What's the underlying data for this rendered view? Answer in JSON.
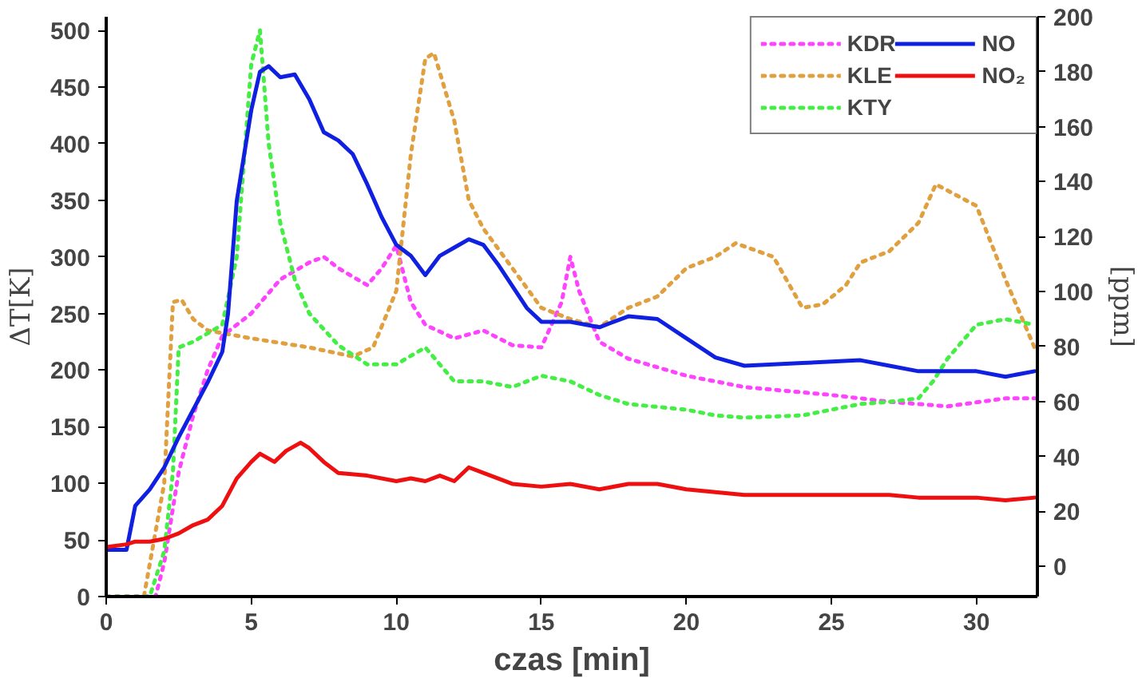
{
  "chart_data": {
    "type": "line",
    "xlabel": "czas [min]",
    "ylabel": "ΔT[K]",
    "y2label": "[ppm]",
    "xlim": [
      0,
      32.1
    ],
    "xticks": [
      0,
      5,
      10,
      15,
      20,
      25,
      30
    ],
    "ylim": [
      0,
      512
    ],
    "yticks": [
      0,
      50,
      100,
      150,
      200,
      250,
      300,
      350,
      400,
      450,
      500
    ],
    "y2lim": [
      -11,
      200
    ],
    "y2ticks": [
      0,
      20,
      40,
      60,
      80,
      100,
      120,
      140,
      160,
      180,
      200
    ],
    "legend": "top right",
    "grid": false,
    "series": [
      {
        "name": "KDR",
        "color": "#ff44ff",
        "line_style": "dotted",
        "x": [
          0,
          1.7,
          2,
          2.5,
          3,
          3.5,
          4,
          5,
          6,
          7,
          7.5,
          8,
          9,
          9.5,
          10,
          10.5,
          11,
          12,
          13,
          14,
          15,
          15.7,
          16,
          16.3,
          17,
          18,
          20,
          22,
          25,
          27,
          29,
          31,
          32
        ],
        "values": [
          0,
          0,
          30,
          110,
          160,
          200,
          230,
          250,
          280,
          295,
          300,
          290,
          275,
          290,
          310,
          260,
          240,
          228,
          235,
          222,
          220,
          260,
          300,
          270,
          225,
          210,
          195,
          185,
          178,
          172,
          168,
          175,
          175
        ]
      },
      {
        "name": "KLE",
        "color": "#e0a040",
        "line_style": "dotted",
        "x": [
          0,
          1.3,
          2,
          2.3,
          2.6,
          3,
          3.5,
          5,
          7,
          8.5,
          9.2,
          10,
          10.5,
          11,
          11.3,
          12,
          12.5,
          13,
          14,
          15,
          16,
          17,
          18,
          19,
          20,
          21,
          21.7,
          23,
          24,
          24.7,
          25.5,
          26,
          27,
          28,
          28.6,
          30,
          31,
          32
        ],
        "values": [
          0,
          0,
          100,
          260,
          262,
          245,
          235,
          228,
          220,
          212,
          220,
          270,
          390,
          475,
          480,
          420,
          350,
          325,
          290,
          255,
          245,
          238,
          255,
          265,
          290,
          300,
          312,
          300,
          255,
          258,
          275,
          295,
          305,
          330,
          364,
          345,
          280,
          220
        ]
      },
      {
        "name": "KTY",
        "color": "#44ee44",
        "line_style": "dotted",
        "x": [
          0,
          1.5,
          2,
          2.3,
          2.5,
          3,
          4,
          4.5,
          5,
          5.3,
          5.6,
          6,
          6.5,
          7,
          8,
          9,
          10,
          11,
          11.5,
          12,
          13,
          14,
          15,
          16,
          17,
          18,
          20,
          21,
          22,
          24,
          25,
          26,
          27,
          28,
          28.5,
          29,
          30,
          31,
          32
        ],
        "values": [
          0,
          0,
          40,
          110,
          220,
          225,
          240,
          300,
          470,
          500,
          400,
          330,
          280,
          250,
          222,
          205,
          205,
          220,
          205,
          190,
          190,
          185,
          195,
          190,
          178,
          170,
          165,
          160,
          158,
          160,
          165,
          170,
          172,
          175,
          190,
          210,
          240,
          245,
          240
        ]
      },
      {
        "name": "NO",
        "color": "#1020e0",
        "line_style": "solid",
        "axis": "y2",
        "x": [
          0,
          0.7,
          1,
          1.5,
          2,
          2.5,
          3,
          3.5,
          4,
          4.2,
          4.5,
          5,
          5.3,
          5.6,
          6,
          6.5,
          7,
          7.5,
          8,
          8.5,
          9,
          9.5,
          10,
          10.5,
          11,
          11.5,
          12,
          12.5,
          13,
          13.5,
          14,
          14.5,
          15,
          16,
          17,
          18,
          19,
          20,
          21,
          22,
          24,
          26,
          27,
          28,
          30,
          31,
          32
        ],
        "values": [
          6,
          6,
          22,
          28,
          36,
          47,
          57,
          67,
          78,
          92,
          133,
          166,
          180,
          182,
          178,
          179,
          170,
          158,
          155,
          150,
          139,
          127,
          117,
          113,
          106,
          113,
          116,
          119,
          117,
          110,
          102,
          94,
          89,
          89,
          87,
          91,
          90,
          83,
          76,
          73,
          74,
          75,
          73,
          71,
          71,
          69,
          71
        ]
      },
      {
        "name": "NO₂",
        "color": "#ee1010",
        "line_style": "solid",
        "axis": "y2",
        "x": [
          0,
          0.7,
          1,
          1.5,
          2,
          2.5,
          3,
          3.5,
          4,
          4.5,
          5,
          5.3,
          5.8,
          6.2,
          6.7,
          7,
          7.5,
          8,
          9,
          10,
          10.5,
          11,
          11.5,
          12,
          12.5,
          13,
          14,
          15,
          16,
          17,
          18,
          19,
          20,
          21,
          22,
          25,
          27,
          28,
          30,
          31,
          32
        ],
        "values": [
          7,
          8,
          9,
          9,
          10,
          12,
          15,
          17,
          22,
          32,
          38,
          41,
          38,
          42,
          45,
          43,
          38,
          34,
          33,
          31,
          32,
          31,
          33,
          31,
          36,
          34,
          30,
          29,
          30,
          28,
          30,
          30,
          28,
          27,
          26,
          26,
          26,
          25,
          25,
          24,
          25
        ]
      }
    ]
  }
}
